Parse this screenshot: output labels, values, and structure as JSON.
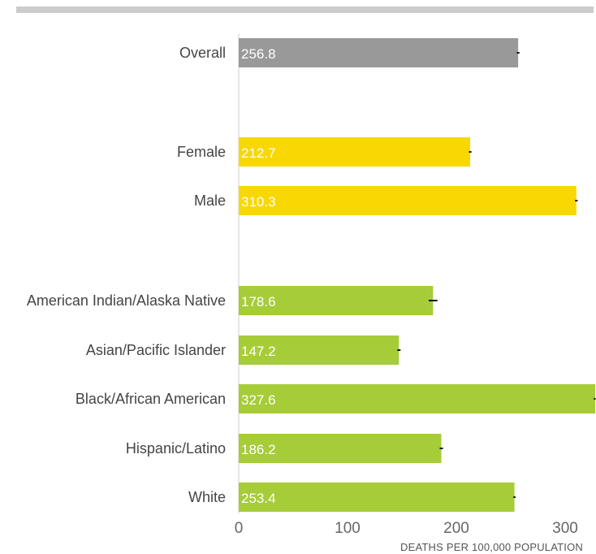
{
  "chart_data": {
    "type": "bar",
    "orientation": "horizontal",
    "categories": [
      "Overall",
      "Female",
      "Male",
      "American Indian/Alaska Native",
      "Asian/Pacific Islander",
      "Black/African American",
      "Hispanic/Latino",
      "White"
    ],
    "values": [
      256.8,
      212.7,
      310.3,
      178.6,
      147.2,
      327.6,
      186.2,
      253.4
    ],
    "value_labels": [
      "256.8",
      "212.7",
      "310.3",
      "178.6",
      "147.2",
      "327.6",
      "186.2",
      "253.4"
    ],
    "error_half_width": [
      1.2,
      1.2,
      1.2,
      4.0,
      1.5,
      1.3,
      1.5,
      1.0
    ],
    "groups": [
      {
        "categories": [
          "Overall"
        ],
        "color": "#999999"
      },
      {
        "categories": [
          "Female",
          "Male"
        ],
        "color": "#f8d800"
      },
      {
        "categories": [
          "American Indian/Alaska Native",
          "Asian/Pacific Islander",
          "Black/African American",
          "Hispanic/Latino",
          "White"
        ],
        "color": "#a6cc38"
      }
    ],
    "xlim": [
      0,
      327.6
    ],
    "xticks": [
      0,
      100,
      200,
      300
    ],
    "xtick_labels": [
      "0",
      "100",
      "200",
      "300"
    ],
    "xlabel": "DEATHS PER 100,000 POPULATION",
    "ylabel": "",
    "title": "",
    "grid": false,
    "legend": "none"
  }
}
